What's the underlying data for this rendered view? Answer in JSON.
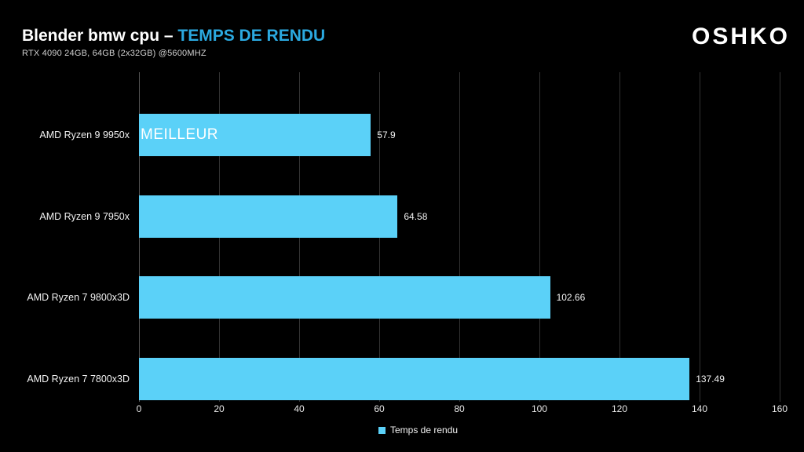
{
  "header": {
    "title_main": "Blender bmw cpu – ",
    "title_accent": "TEMPS DE RENDU",
    "subtitle": "RTX 4090 24GB, 64GB (2x32GB) @5600MHZ",
    "logo": "OSHKO"
  },
  "chart_data": {
    "type": "bar",
    "orientation": "horizontal",
    "title": "Blender bmw cpu – TEMPS DE RENDU",
    "categories": [
      "AMD Ryzen 9 9950x",
      "AMD Ryzen 9 7950x",
      "AMD Ryzen 7 9800x3D",
      "AMD Ryzen 7 7800x3D"
    ],
    "values": [
      57.9,
      64.58,
      102.66,
      137.49
    ],
    "value_labels": [
      "57.9",
      "64.58",
      "102.66",
      "137.49"
    ],
    "annotations": [
      {
        "category_index": 0,
        "text": "MEILLEUR"
      }
    ],
    "xlabel": "",
    "ylabel": "",
    "xlim": [
      0,
      160
    ],
    "xticks": [
      0,
      20,
      40,
      60,
      80,
      100,
      120,
      140,
      160
    ],
    "grid": true,
    "legend": {
      "label": "Temps de rendu",
      "position": "bottom-center"
    }
  },
  "colors": {
    "background": "#000000",
    "title_accent": "#2BA9E0",
    "bar": "#5BD1F8",
    "gridline": "#333333",
    "axis_line": "#555555",
    "text": "#FFFFFF"
  }
}
